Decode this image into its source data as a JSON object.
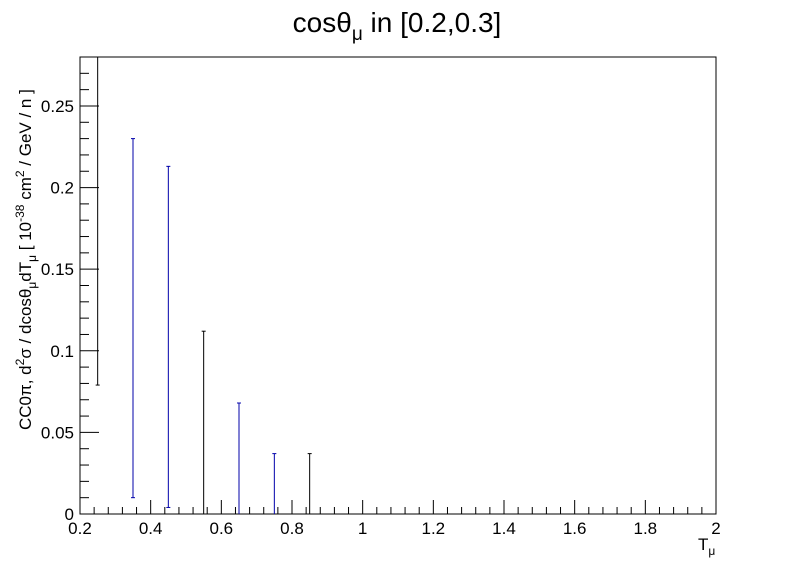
{
  "chart_data": {
    "type": "scatter",
    "title": {
      "main": "cosθ",
      "sub": "μ",
      "rest": " in [0.2,0.3]"
    },
    "xlabel": {
      "main": "T",
      "sub": "μ"
    },
    "ylabel": {
      "p1": "CC0π, d",
      "s1": "2",
      "p2": "σ / dcosθ",
      "s2": "μ",
      "p3": "dT",
      "s3": "μ",
      "p4": " [ 10",
      "s4": "-38",
      "p5": " cm",
      "s5": "2",
      "p6": " / GeV / n ]"
    },
    "xlim": [
      0.2,
      2.0
    ],
    "ylim": [
      0,
      0.28
    ],
    "x_ticks": [
      {
        "v": 0.2,
        "label": "0.2"
      },
      {
        "v": 0.4,
        "label": "0.4"
      },
      {
        "v": 0.6,
        "label": "0.6"
      },
      {
        "v": 0.8,
        "label": "0.8"
      },
      {
        "v": 1.0,
        "label": "1"
      },
      {
        "v": 1.2,
        "label": "1.2"
      },
      {
        "v": 1.4,
        "label": "1.4"
      },
      {
        "v": 1.6,
        "label": "1.6"
      },
      {
        "v": 1.8,
        "label": "1.8"
      },
      {
        "v": 2.0,
        "label": "2"
      }
    ],
    "y_ticks": [
      {
        "v": 0,
        "label": "0"
      },
      {
        "v": 0.05,
        "label": "0.05"
      },
      {
        "v": 0.1,
        "label": "0.1"
      },
      {
        "v": 0.15,
        "label": "0.15"
      },
      {
        "v": 0.2,
        "label": "0.2"
      },
      {
        "v": 0.25,
        "label": "0.25"
      }
    ],
    "series": [
      {
        "color": "#000000",
        "points": [
          {
            "x": 0.25,
            "low": 0.079,
            "high": 0.28
          },
          {
            "x": 0.55,
            "low": 0.0,
            "high": 0.112
          },
          {
            "x": 0.85,
            "low": 0.0,
            "high": 0.037
          }
        ]
      },
      {
        "color": "#0000aa",
        "points": [
          {
            "x": 0.35,
            "low": 0.01,
            "high": 0.23
          },
          {
            "x": 0.45,
            "low": 0.004,
            "high": 0.213
          },
          {
            "x": 0.65,
            "low": 0.0,
            "high": 0.068
          },
          {
            "x": 0.75,
            "low": 0.0,
            "high": 0.037
          }
        ]
      }
    ],
    "grid": false
  }
}
